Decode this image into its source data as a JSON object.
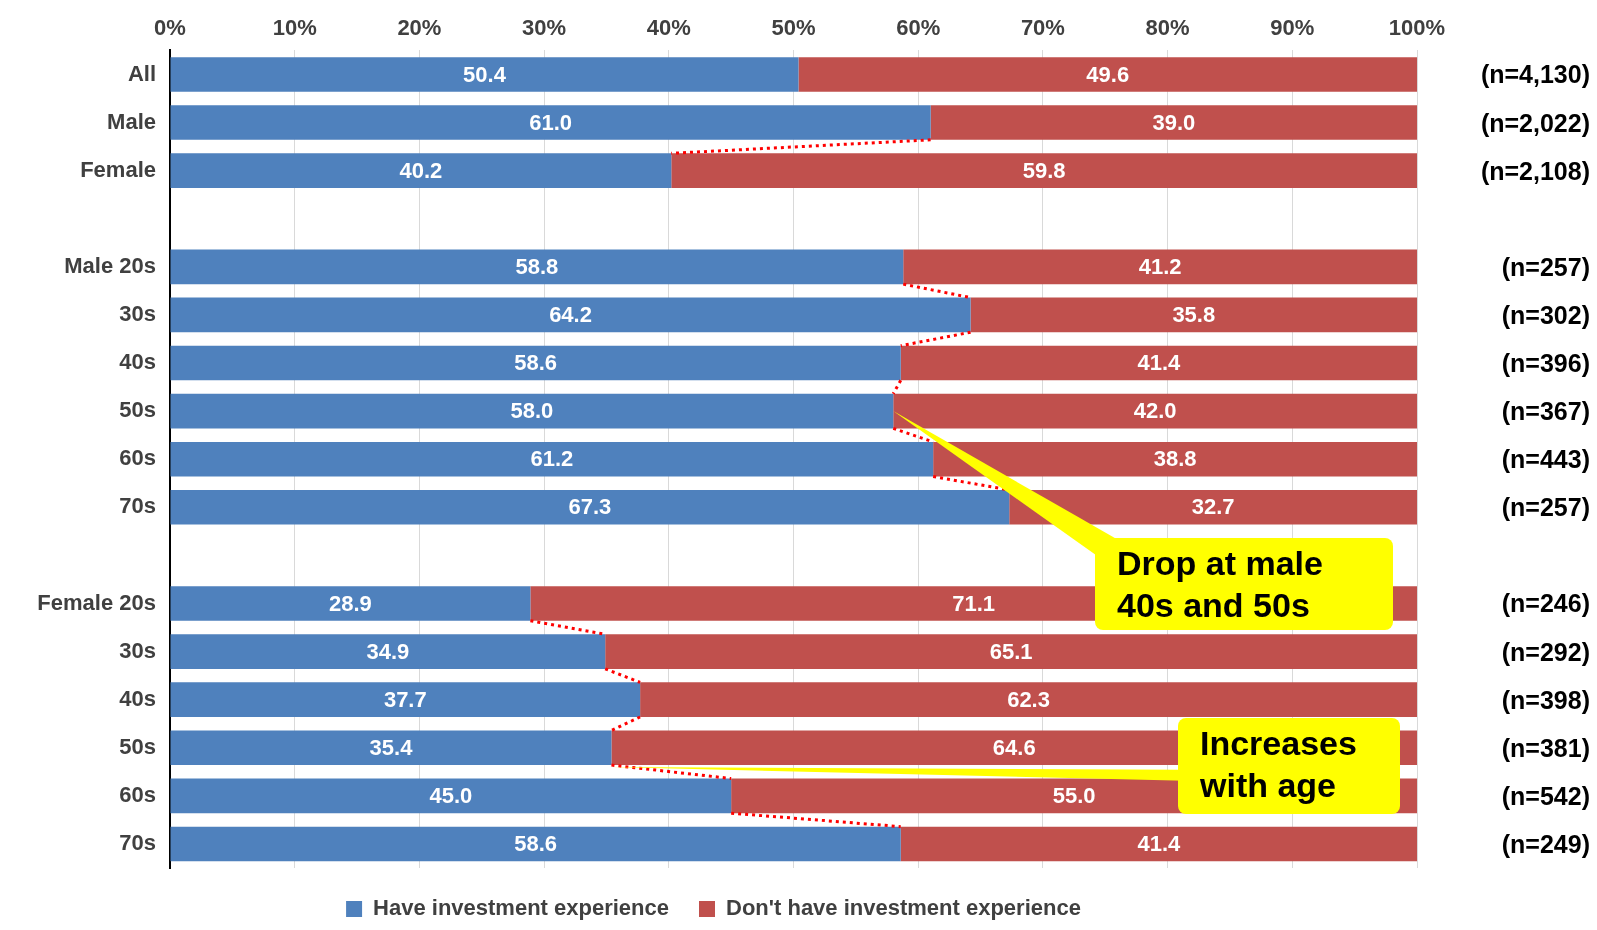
{
  "chart_data": {
    "type": "bar",
    "orientation": "horizontal",
    "stacked": true,
    "legend": "bottom",
    "grid": "x",
    "categories": [
      "All",
      "Male",
      "Female",
      null,
      "Male 20s",
      "30s",
      "40s",
      "50s",
      "60s",
      "70s",
      null,
      "Female 20s",
      "30s",
      "40s",
      "50s",
      "60s",
      "70s"
    ],
    "series": [
      {
        "name": "Have investment experience",
        "color": "#4f81bd",
        "values": [
          50.4,
          61.0,
          40.2,
          null,
          58.8,
          64.2,
          58.6,
          58.0,
          61.2,
          67.3,
          null,
          28.9,
          34.9,
          37.7,
          35.4,
          45.0,
          58.6
        ],
        "value_labels": [
          "50.4",
          "61.0",
          "40.2",
          null,
          "58.8",
          "64.2",
          "58.6",
          "58.0",
          "61.2",
          "67.3",
          null,
          "28.9",
          "34.9",
          "37.7",
          "35.4",
          "45.0",
          "58.6"
        ]
      },
      {
        "name": "Don't have investment experience",
        "color": "#c0504d",
        "values": [
          49.6,
          39.0,
          59.8,
          null,
          41.2,
          35.8,
          41.4,
          42.0,
          38.8,
          32.7,
          null,
          71.1,
          65.1,
          62.3,
          64.6,
          55.0,
          41.4
        ],
        "value_labels": [
          "49.6",
          "39.0",
          "59.8",
          null,
          "41.2",
          "35.8",
          "41.4",
          "42.0",
          "38.8",
          "32.7",
          null,
          "71.1",
          "65.1",
          "62.3",
          "64.6",
          "55.0",
          "41.4"
        ]
      }
    ],
    "xlim": [
      0,
      100
    ],
    "xticks": [
      {
        "value": 0,
        "label": "0%"
      },
      {
        "value": 10,
        "label": "10%"
      },
      {
        "value": 20,
        "label": "20%"
      },
      {
        "value": 30,
        "label": "30%"
      },
      {
        "value": 40,
        "label": "40%"
      },
      {
        "value": 50,
        "label": "50%"
      },
      {
        "value": 60,
        "label": "60%"
      },
      {
        "value": 70,
        "label": "70%"
      },
      {
        "value": 80,
        "label": "80%"
      },
      {
        "value": 90,
        "label": "90%"
      },
      {
        "value": 100,
        "label": "100%"
      }
    ],
    "annotations": [
      "(n=4,130)",
      "(n=2,022)",
      "(n=2,108)",
      "(n=257)",
      "(n=302)",
      "(n=396)",
      "(n=367)",
      "(n=443)",
      "(n=257)",
      "(n=246)",
      "(n=292)",
      "(n=398)",
      "(n=381)",
      "(n=542)",
      "(n=249)",
      "Drop at male 40s and 50s",
      "Increases with age"
    ]
  }
}
